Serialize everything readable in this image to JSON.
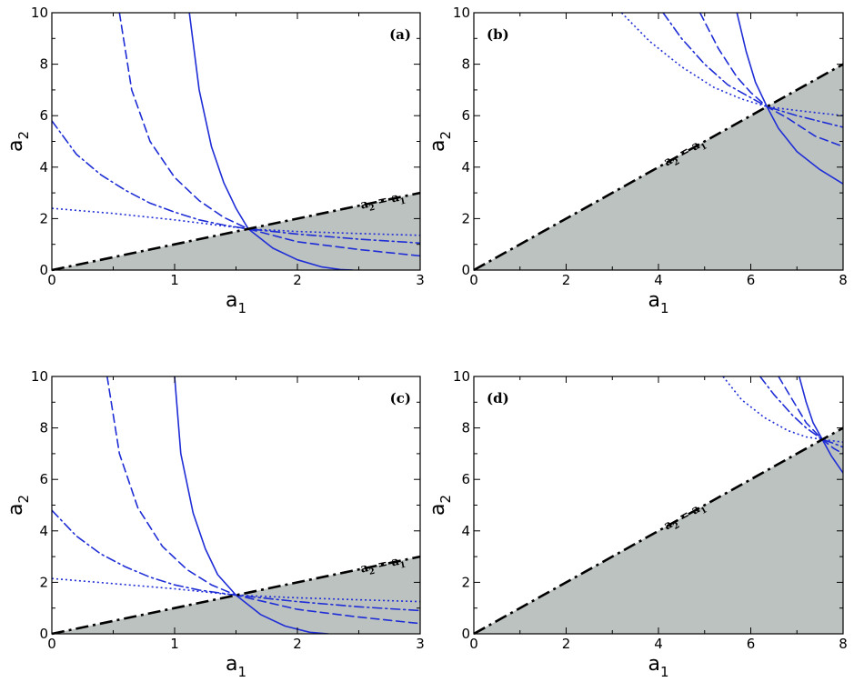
{
  "colors": {
    "shade": "#bcc2c0",
    "curve": "#1f2dd6",
    "diagonal": "#000000",
    "frame": "#000000"
  },
  "chart_data": [
    {
      "type": "line",
      "panel_label": "(a)",
      "xlabel": "a",
      "xlabel_sub": "1",
      "ylabel": "a",
      "ylabel_sub": "2",
      "xlim": [
        0,
        3
      ],
      "ylim": [
        0,
        10
      ],
      "xticks": [
        "0",
        "1",
        "2",
        "3"
      ],
      "yticks": [
        "0",
        "2",
        "4",
        "6",
        "8",
        "10"
      ],
      "grid": false,
      "shaded_region": "below line a2 = a1",
      "diagonal": {
        "label_a": "a",
        "label_sub2": "2",
        "label_eq": "=",
        "label_b": "a",
        "label_sub1": "1",
        "label_at_x": 2.7
      },
      "intersection": 1.6,
      "series": [
        {
          "style": "solid",
          "x": [
            1.12,
            1.2,
            1.3,
            1.4,
            1.5,
            1.6,
            1.8,
            2.0,
            2.2,
            2.35,
            2.45
          ],
          "y": [
            10,
            7.0,
            4.8,
            3.4,
            2.4,
            1.6,
            0.85,
            0.4,
            0.12,
            0.02,
            0
          ]
        },
        {
          "style": "dashed",
          "x": [
            0.55,
            0.65,
            0.8,
            1.0,
            1.2,
            1.4,
            1.6,
            2.0,
            2.5,
            3.0
          ],
          "y": [
            10,
            7.0,
            5.0,
            3.6,
            2.7,
            2.05,
            1.6,
            1.1,
            0.8,
            0.55
          ]
        },
        {
          "style": "dashdot",
          "x": [
            0.0,
            0.2,
            0.4,
            0.6,
            0.8,
            1.0,
            1.2,
            1.4,
            1.6,
            2.0,
            2.5,
            3.0
          ],
          "y": [
            5.8,
            4.5,
            3.7,
            3.1,
            2.6,
            2.25,
            1.95,
            1.75,
            1.6,
            1.4,
            1.2,
            1.05
          ]
        },
        {
          "style": "dotted",
          "x": [
            0.0,
            0.5,
            1.0,
            1.6,
            2.0,
            2.5,
            3.0
          ],
          "y": [
            2.4,
            2.2,
            1.95,
            1.6,
            1.5,
            1.42,
            1.35
          ]
        }
      ]
    },
    {
      "type": "line",
      "panel_label": "(b)",
      "xlabel": "a",
      "xlabel_sub": "1",
      "ylabel": "a",
      "ylabel_sub": "2",
      "xlim": [
        0,
        8
      ],
      "ylim": [
        0,
        10
      ],
      "xticks": [
        "0",
        "2",
        "4",
        "6",
        "8"
      ],
      "yticks": [
        "0",
        "2",
        "4",
        "6",
        "8",
        "10"
      ],
      "grid": false,
      "shaded_region": "below line a2 = a1",
      "diagonal": {
        "label_a": "a",
        "label_sub2": "2",
        "label_eq": "=",
        "label_b": "a",
        "label_sub1": "1",
        "label_at_x": 4.6
      },
      "intersection": 6.35,
      "series": [
        {
          "style": "solid",
          "x": [
            5.7,
            5.9,
            6.1,
            6.35,
            6.6,
            7.0,
            7.5,
            8.0
          ],
          "y": [
            10,
            8.5,
            7.3,
            6.35,
            5.5,
            4.6,
            3.9,
            3.35
          ]
        },
        {
          "style": "dashed",
          "x": [
            4.9,
            5.3,
            5.7,
            6.0,
            6.35,
            6.8,
            7.4,
            8.0
          ],
          "y": [
            10,
            8.6,
            7.5,
            6.9,
            6.35,
            5.9,
            5.2,
            4.8
          ]
        },
        {
          "style": "dashdot",
          "x": [
            4.1,
            4.5,
            5.0,
            5.5,
            6.0,
            6.35,
            7.0,
            8.0
          ],
          "y": [
            10,
            9.0,
            8.0,
            7.2,
            6.7,
            6.35,
            6.0,
            5.55
          ]
        },
        {
          "style": "dotted",
          "x": [
            3.2,
            3.8,
            4.5,
            5.2,
            5.8,
            6.35,
            7.0,
            8.0
          ],
          "y": [
            10,
            8.9,
            7.9,
            7.1,
            6.65,
            6.35,
            6.2,
            6.0
          ]
        }
      ]
    },
    {
      "type": "line",
      "panel_label": "(c)",
      "xlabel": "a",
      "xlabel_sub": "1",
      "ylabel": "a",
      "ylabel_sub": "2",
      "xlim": [
        0,
        3
      ],
      "ylim": [
        0,
        10
      ],
      "xticks": [
        "0",
        "1",
        "2",
        "3"
      ],
      "yticks": [
        "0",
        "2",
        "4",
        "6",
        "8",
        "10"
      ],
      "grid": false,
      "shaded_region": "below line a2 = a1",
      "diagonal": {
        "label_a": "a",
        "label_sub2": "2",
        "label_eq": "=",
        "label_b": "a",
        "label_sub1": "1",
        "label_at_x": 2.7
      },
      "intersection": 1.5,
      "series": [
        {
          "style": "solid",
          "x": [
            1.0,
            1.05,
            1.15,
            1.25,
            1.35,
            1.5,
            1.7,
            1.9,
            2.1,
            2.25
          ],
          "y": [
            10,
            7.0,
            4.7,
            3.3,
            2.3,
            1.5,
            0.75,
            0.3,
            0.06,
            0
          ]
        },
        {
          "style": "dashed",
          "x": [
            0.45,
            0.55,
            0.7,
            0.9,
            1.1,
            1.3,
            1.5,
            2.0,
            2.5,
            3.0
          ],
          "y": [
            10,
            7.0,
            4.9,
            3.4,
            2.5,
            1.9,
            1.5,
            0.95,
            0.65,
            0.4
          ]
        },
        {
          "style": "dashdot",
          "x": [
            0.0,
            0.2,
            0.4,
            0.6,
            0.8,
            1.0,
            1.2,
            1.5,
            2.0,
            2.5,
            3.0
          ],
          "y": [
            4.8,
            3.8,
            3.1,
            2.6,
            2.2,
            1.9,
            1.7,
            1.5,
            1.25,
            1.05,
            0.9
          ]
        },
        {
          "style": "dotted",
          "x": [
            0.0,
            0.5,
            1.0,
            1.5,
            2.0,
            2.5,
            3.0
          ],
          "y": [
            2.15,
            1.95,
            1.75,
            1.5,
            1.4,
            1.32,
            1.25
          ]
        }
      ]
    },
    {
      "type": "line",
      "panel_label": "(d)",
      "xlabel": "a",
      "xlabel_sub": "1",
      "ylabel": "a",
      "ylabel_sub": "2",
      "xlim": [
        0,
        8
      ],
      "ylim": [
        0,
        10
      ],
      "xticks": [
        "0",
        "2",
        "4",
        "6",
        "8"
      ],
      "yticks": [
        "0",
        "2",
        "4",
        "6",
        "8",
        "10"
      ],
      "grid": false,
      "shaded_region": "below line a2 = a1",
      "diagonal": {
        "label_a": "a",
        "label_sub2": "2",
        "label_eq": "=",
        "label_b": "a",
        "label_sub1": "1",
        "label_at_x": 4.6
      },
      "intersection": 7.55,
      "series": [
        {
          "style": "solid",
          "x": [
            7.05,
            7.2,
            7.35,
            7.55,
            7.75,
            8.0
          ],
          "y": [
            10,
            9.0,
            8.2,
            7.55,
            6.9,
            6.25
          ]
        },
        {
          "style": "dashed",
          "x": [
            6.6,
            6.9,
            7.2,
            7.55,
            7.8,
            8.0
          ],
          "y": [
            10,
            9.1,
            8.2,
            7.55,
            7.2,
            7.0
          ]
        },
        {
          "style": "dashdot",
          "x": [
            6.2,
            6.5,
            6.9,
            7.2,
            7.55,
            7.8,
            8.0
          ],
          "y": [
            10,
            9.3,
            8.5,
            8.0,
            7.55,
            7.4,
            7.25
          ]
        },
        {
          "style": "dotted",
          "x": [
            5.4,
            5.8,
            6.3,
            6.8,
            7.2,
            7.55,
            8.0
          ],
          "y": [
            10,
            9.1,
            8.4,
            7.9,
            7.65,
            7.55,
            7.45
          ]
        }
      ]
    }
  ]
}
